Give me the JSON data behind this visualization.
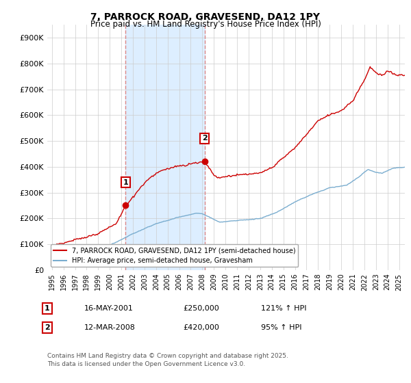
{
  "title": "7, PARROCK ROAD, GRAVESEND, DA12 1PY",
  "subtitle": "Price paid vs. HM Land Registry's House Price Index (HPI)",
  "hpi_label": "HPI: Average price, semi-detached house, Gravesham",
  "property_label": "7, PARROCK ROAD, GRAVESEND, DA12 1PY (semi-detached house)",
  "red_color": "#cc0000",
  "blue_color": "#7aadcf",
  "shaded_color": "#ddeeff",
  "dashed_color": "#dd8888",
  "sale1_x": 2001.37,
  "sale1_y": 250000,
  "sale2_x": 2008.2,
  "sale2_y": 420000,
  "footer": "Contains HM Land Registry data © Crown copyright and database right 2025.\nThis data is licensed under the Open Government Licence v3.0.",
  "ylim": [
    0,
    950000
  ],
  "yticks": [
    0,
    100000,
    200000,
    300000,
    400000,
    500000,
    600000,
    700000,
    800000,
    900000
  ],
  "ytick_labels": [
    "£0",
    "£100K",
    "£200K",
    "£300K",
    "£400K",
    "£500K",
    "£600K",
    "£700K",
    "£800K",
    "£900K"
  ],
  "xlim_start": 1994.6,
  "xlim_end": 2025.5,
  "ann1_date": "16-MAY-2001",
  "ann1_price": "£250,000",
  "ann1_hpi": "121% ↑ HPI",
  "ann2_date": "12-MAR-2008",
  "ann2_price": "£420,000",
  "ann2_hpi": "95% ↑ HPI"
}
